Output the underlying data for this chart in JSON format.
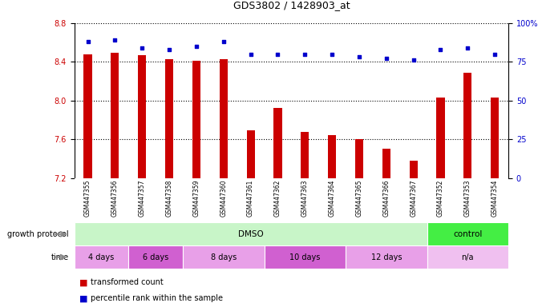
{
  "title": "GDS3802 / 1428903_at",
  "samples": [
    "GSM447355",
    "GSM447356",
    "GSM447357",
    "GSM447358",
    "GSM447359",
    "GSM447360",
    "GSM447361",
    "GSM447362",
    "GSM447363",
    "GSM447364",
    "GSM447365",
    "GSM447366",
    "GSM447367",
    "GSM447352",
    "GSM447353",
    "GSM447354"
  ],
  "bar_values": [
    8.48,
    8.49,
    8.47,
    8.43,
    8.41,
    8.43,
    7.69,
    7.92,
    7.68,
    7.64,
    7.6,
    7.5,
    7.38,
    8.03,
    8.29,
    8.03
  ],
  "dot_percentiles": [
    88,
    89,
    84,
    83,
    85,
    88,
    80,
    80,
    80,
    80,
    78,
    77,
    76,
    83,
    84,
    80
  ],
  "bar_color": "#cc0000",
  "dot_color": "#0000cc",
  "ylim_left": [
    7.2,
    8.8
  ],
  "yticks_left": [
    7.2,
    7.6,
    8.0,
    8.4,
    8.8
  ],
  "yticks_right": [
    0,
    25,
    50,
    75,
    100
  ],
  "ytick_labels_right": [
    "0",
    "25",
    "50",
    "75",
    "100%"
  ],
  "gridlines": [
    7.6,
    8.0,
    8.4,
    8.8
  ],
  "growth_protocol_groups": [
    {
      "text": "DMSO",
      "start": 0,
      "end": 12,
      "color": "#c8f5c8"
    },
    {
      "text": "control",
      "start": 13,
      "end": 15,
      "color": "#44ee44"
    }
  ],
  "time_groups": [
    {
      "text": "4 days",
      "start": 0,
      "end": 1,
      "color": "#e8a0e8"
    },
    {
      "text": "6 days",
      "start": 2,
      "end": 3,
      "color": "#d060d0"
    },
    {
      "text": "8 days",
      "start": 4,
      "end": 6,
      "color": "#e8a0e8"
    },
    {
      "text": "10 days",
      "start": 7,
      "end": 9,
      "color": "#d060d0"
    },
    {
      "text": "12 days",
      "start": 10,
      "end": 12,
      "color": "#e8a0e8"
    },
    {
      "text": "n/a",
      "start": 13,
      "end": 15,
      "color": "#f0c0f0"
    }
  ],
  "legend_items": [
    {
      "label": "transformed count",
      "color": "#cc0000"
    },
    {
      "label": "percentile rank within the sample",
      "color": "#0000cc"
    }
  ],
  "tick_bg_color": "#d8d8d8",
  "fig_bg": "#ffffff",
  "bar_width": 0.3
}
